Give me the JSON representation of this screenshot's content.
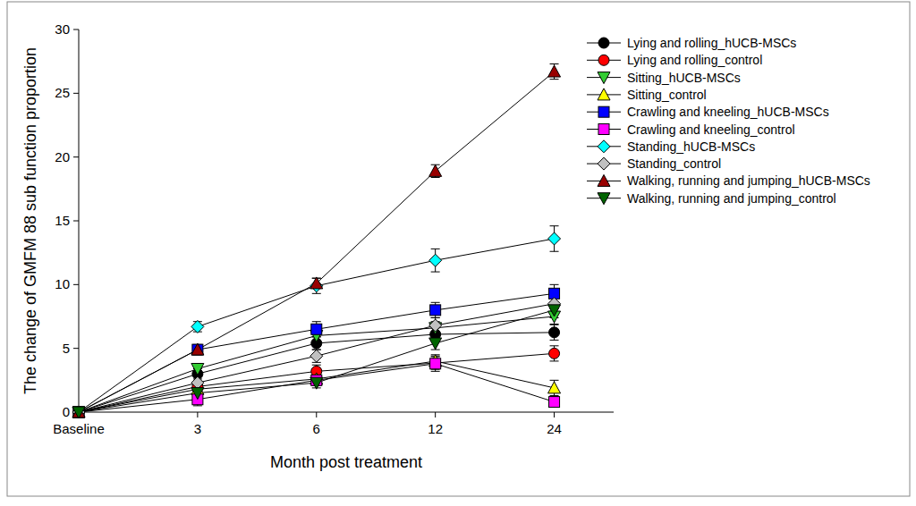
{
  "chart_data": {
    "type": "line",
    "x_label": "Month post treatment",
    "y_label": "The change of GMFM 88 sub function proportion",
    "categories": [
      "Baseline",
      "3",
      "6",
      "12",
      "24"
    ],
    "ylim": [
      0,
      30
    ],
    "yticks": [
      0,
      5,
      10,
      15,
      20,
      25,
      30
    ],
    "grid": false,
    "legend": "right",
    "series": [
      {
        "name": "Lying and rolling_hUCB-MSCs",
        "color": "#000000",
        "marker": "circle",
        "values": [
          0,
          3.0,
          5.4,
          6.1,
          6.25
        ],
        "errors": [
          0,
          0.4,
          0.5,
          0.5,
          0.6
        ]
      },
      {
        "name": "Lying and rolling_control",
        "color": "#ff0000",
        "marker": "circle",
        "values": [
          0,
          2.0,
          3.2,
          3.85,
          4.6
        ],
        "errors": [
          0,
          0.4,
          0.5,
          0.5,
          0.6
        ]
      },
      {
        "name": "Sitting_hUCB-MSCs",
        "color": "#33cc33",
        "marker": "triangle-down",
        "values": [
          0,
          3.4,
          6.0,
          6.6,
          7.5
        ],
        "errors": [
          0,
          0.4,
          0.5,
          0.5,
          0.6
        ]
      },
      {
        "name": "Sitting_control",
        "color": "#ffff00",
        "marker": "triangle-up",
        "values": [
          0,
          1.8,
          2.6,
          4.0,
          1.9
        ],
        "errors": [
          0,
          0.4,
          0.4,
          0.5,
          0.6
        ]
      },
      {
        "name": "Crawling and kneeling_hUCB-MSCs",
        "color": "#0000ff",
        "marker": "square",
        "values": [
          0,
          4.9,
          6.5,
          8.0,
          9.3
        ],
        "errors": [
          0,
          0.4,
          0.6,
          0.6,
          0.7
        ]
      },
      {
        "name": "Crawling and kneeling_control",
        "color": "#ff00ff",
        "marker": "square",
        "values": [
          0,
          1.0,
          2.5,
          3.8,
          0.8
        ],
        "errors": [
          0,
          0.5,
          0.4,
          0.6,
          0.4
        ]
      },
      {
        "name": "Standing_hUCB-MSCs",
        "color": "#00ffff",
        "marker": "diamond",
        "values": [
          0,
          6.7,
          9.9,
          11.9,
          13.6
        ],
        "errors": [
          0,
          0.4,
          0.6,
          0.9,
          1.0
        ]
      },
      {
        "name": "Standing_control",
        "color": "#c0c0c0",
        "marker": "diamond",
        "values": [
          0,
          2.3,
          4.4,
          6.8,
          8.5
        ],
        "errors": [
          0,
          0.5,
          0.5,
          0.6,
          0.7
        ]
      },
      {
        "name": "Walking, running and jumping_hUCB-MSCs",
        "color": "#990000",
        "marker": "triangle-up",
        "values": [
          0,
          4.9,
          10.1,
          18.9,
          26.7
        ],
        "errors": [
          0,
          0.3,
          0.4,
          0.5,
          0.6
        ]
      },
      {
        "name": "Walking, running and jumping_control",
        "color": "#006400",
        "marker": "triangle-down",
        "values": [
          0,
          1.5,
          2.3,
          5.4,
          8.0
        ],
        "errors": [
          0,
          0.4,
          0.4,
          0.5,
          0.6
        ]
      }
    ]
  }
}
